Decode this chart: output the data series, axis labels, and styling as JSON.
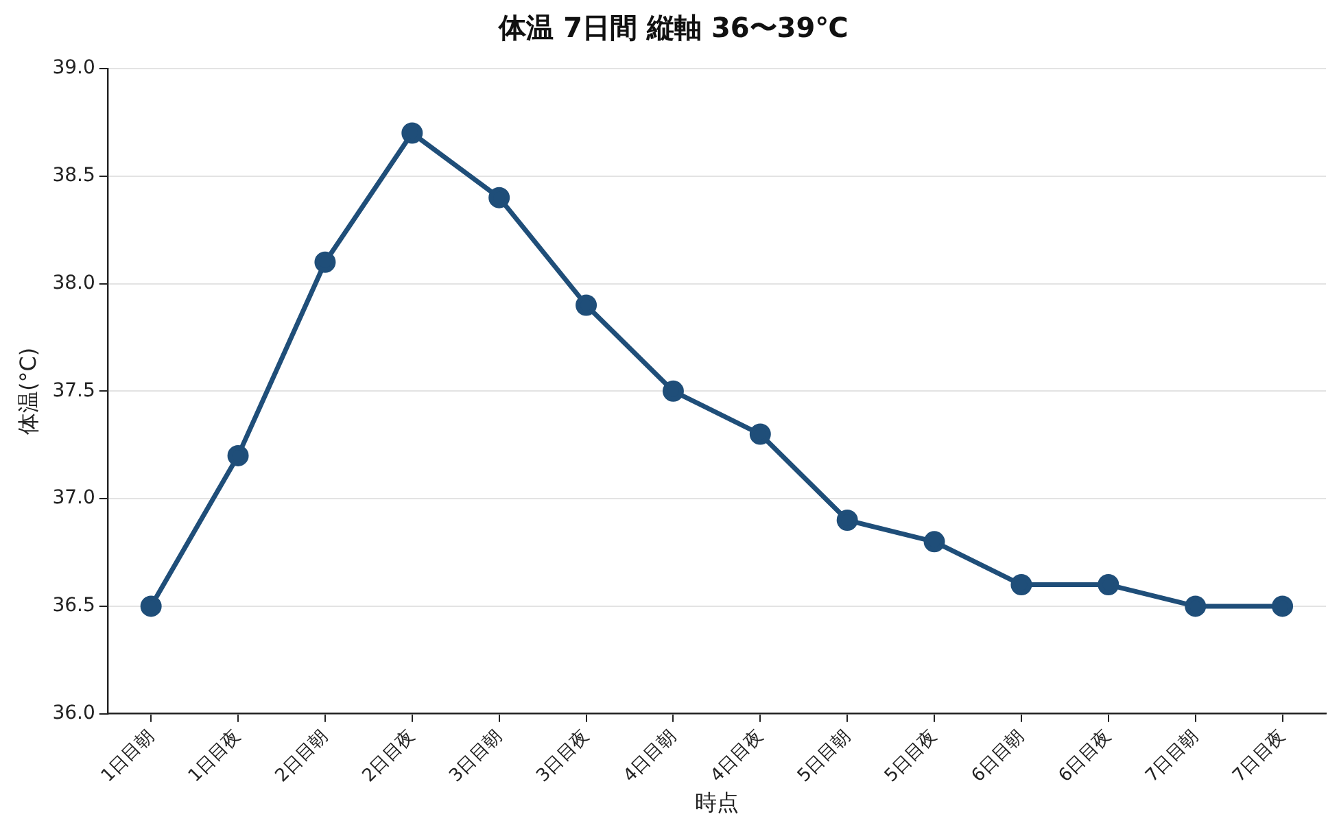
{
  "chart_data": {
    "type": "line",
    "title": "体温 7日間 縦軸 36〜39℃",
    "xlabel": "時点",
    "ylabel": "体温(°C)",
    "categories": [
      "1日目朝",
      "1日目夜",
      "2日目朝",
      "2日目夜",
      "3日目朝",
      "3日目夜",
      "4日目朝",
      "4日目夜",
      "5日目朝",
      "5日目夜",
      "6日目朝",
      "6日目夜",
      "7日目朝",
      "7日目夜"
    ],
    "series": [
      {
        "color": "#1f4e79",
        "values": [
          36.5,
          37.2,
          38.1,
          38.7,
          38.4,
          37.9,
          37.5,
          37.3,
          36.9,
          36.8,
          36.6,
          36.6,
          36.5,
          36.5
        ]
      }
    ],
    "ylim": [
      36,
      39
    ],
    "yticks": [
      {
        "value": 36,
        "label": "36.0"
      },
      {
        "value": 36.5,
        "label": "36.5"
      },
      {
        "value": 37,
        "label": "37.0"
      },
      {
        "value": 37.5,
        "label": "37.5"
      },
      {
        "value": 38,
        "label": "38.0"
      },
      {
        "value": 38.5,
        "label": "38.5"
      },
      {
        "value": 39,
        "label": "39.0"
      }
    ],
    "grid": "y",
    "legend": false,
    "marker": "circle",
    "line_style": "solid"
  }
}
